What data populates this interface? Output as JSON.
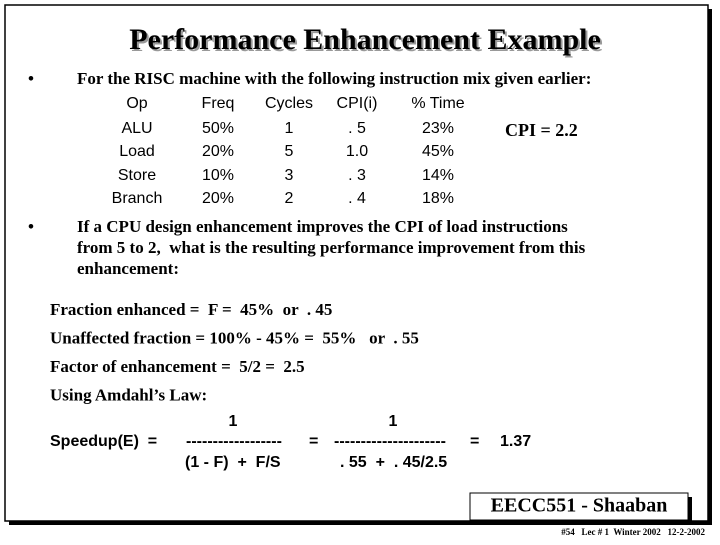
{
  "title": "Performance Enhancement Example",
  "bullets": [
    {
      "marker": "•",
      "lines": [
        "For the RISC machine with the following instruction mix given earlier:"
      ]
    },
    {
      "marker": "•",
      "lines": [
        "If a CPU design enhancement improves the CPI of load instructions",
        "from 5 to 2,  what is the resulting performance improvement from this",
        "enhancement:"
      ]
    }
  ],
  "table": {
    "header": [
      "Op",
      "Freq",
      "Cycles",
      "CPI(i)",
      "% Time"
    ],
    "rows": [
      [
        "ALU",
        "50%",
        "1",
        ". 5",
        "23%"
      ],
      [
        "Load",
        "20%",
        "5",
        "1.0",
        "45%"
      ],
      [
        "Store",
        "10%",
        "3",
        ". 3",
        "14%"
      ],
      [
        "Branch",
        "20%",
        "2",
        ". 4",
        "18%"
      ]
    ]
  },
  "cpi_note": "CPI = 2.2",
  "lines": [
    "Fraction enhanced =  F =  45%  or  . 45",
    "Unaffected fraction = 100% - 45% =  55%   or  . 55",
    "Factor of enhancement =  5/2 =  2.5",
    "Using Amdahl’s Law:"
  ],
  "speedup": {
    "label": "Speedup(E)  =",
    "numerator1": "1",
    "dashes1": "------------------",
    "denominator1": "(1 - F)  +  F/S",
    "equals1": "=",
    "numerator2": "1",
    "dashes2": "---------------------",
    "denominator2": ". 55  +  . 45/2.5",
    "equals2": "=",
    "result": "1.37"
  },
  "footer": {
    "course": "EECC551 - Shaaban",
    "info": "#54   Lec # 1  Winter 2002   12-2-2002"
  }
}
